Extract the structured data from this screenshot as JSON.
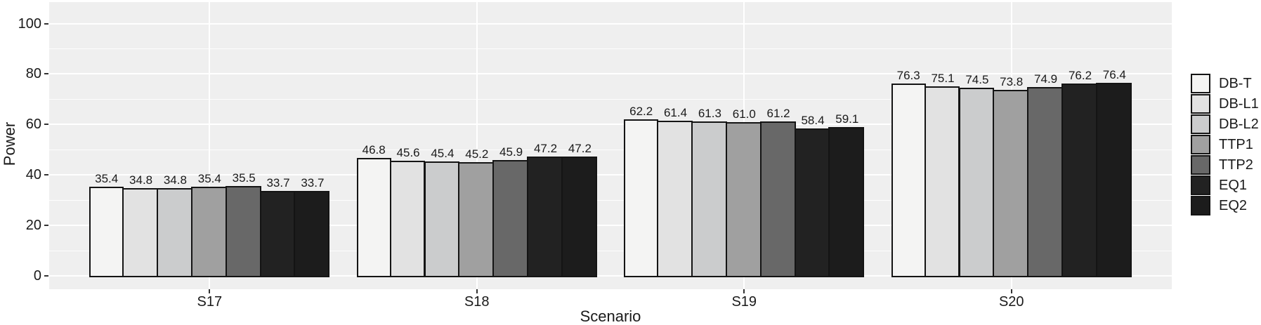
{
  "chart_data": {
    "type": "bar",
    "title": "",
    "xlabel": "Scenario",
    "ylabel": "Power",
    "categories": [
      "S17",
      "S18",
      "S19",
      "S20"
    ],
    "series": [
      {
        "name": "DB-T",
        "color": "#f4f4f3",
        "values": [
          35.4,
          46.8,
          62.2,
          76.3
        ]
      },
      {
        "name": "DB-L1",
        "color": "#e2e2e2",
        "values": [
          34.8,
          45.6,
          61.4,
          75.1
        ]
      },
      {
        "name": "DB-L2",
        "color": "#cbcccd",
        "values": [
          34.8,
          45.4,
          61.3,
          74.5
        ]
      },
      {
        "name": "TTP1",
        "color": "#a0a0a0",
        "values": [
          35.4,
          45.2,
          61.0,
          73.8
        ]
      },
      {
        "name": "TTP2",
        "color": "#686868",
        "values": [
          35.5,
          45.9,
          61.2,
          74.9
        ]
      },
      {
        "name": "EQ1",
        "color": "#222222",
        "values": [
          33.7,
          47.2,
          58.4,
          76.2
        ]
      },
      {
        "name": "EQ2",
        "color": "#1c1c1c",
        "values": [
          33.7,
          47.2,
          59.1,
          76.4
        ]
      }
    ],
    "bar_labels_shown": true,
    "bar_label_decimals": 1,
    "y_ticks": [
      0,
      20,
      40,
      60,
      80,
      100
    ],
    "y_minor_ticks": [
      10,
      30,
      50,
      70,
      90
    ],
    "ylim": [
      0,
      100
    ],
    "grid": true,
    "legend_position": "right",
    "panel_background": "#efefef",
    "gridline_color": "#ffffff",
    "bar_border_color": "#141414",
    "text_color": "#1a1a1a"
  }
}
